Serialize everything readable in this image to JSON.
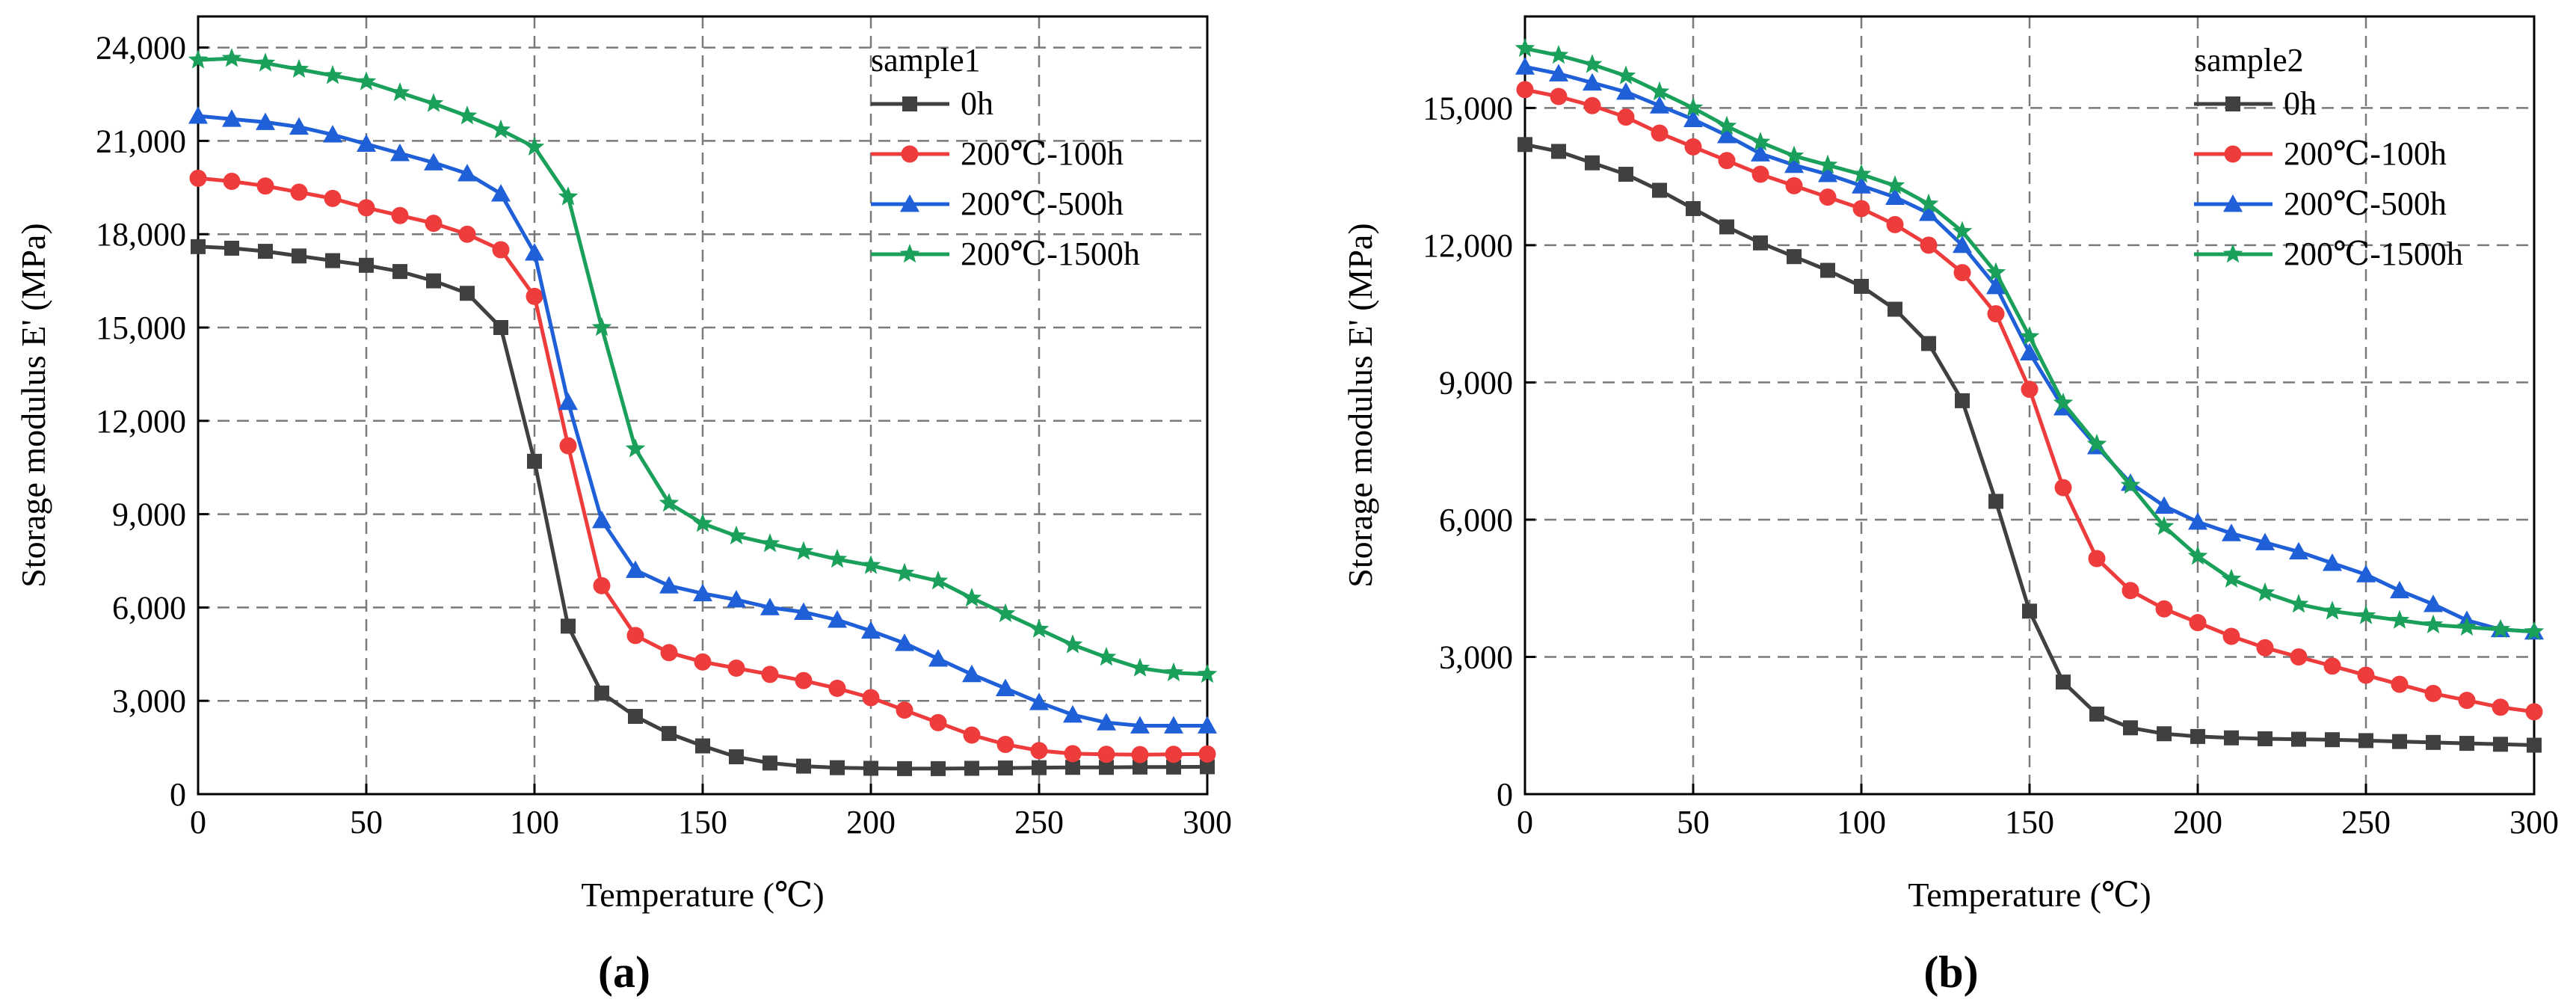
{
  "chart_data": [
    {
      "type": "line",
      "panel_label": "(a)",
      "xlabel": "Temperature (℃)",
      "ylabel": "Storage modulus E' (MPa)",
      "xlim": [
        0,
        300
      ],
      "ylim": [
        0,
        25000
      ],
      "xticks": [
        0,
        50,
        100,
        150,
        200,
        250,
        300
      ],
      "xtick_labels": [
        "0",
        "50",
        "100",
        "150",
        "200",
        "250",
        "300"
      ],
      "yticks": [
        0,
        3000,
        6000,
        9000,
        12000,
        15000,
        18000,
        21000,
        24000
      ],
      "ytick_labels": [
        "0",
        "3,000",
        "6,000",
        "9,000",
        "12,000",
        "15,000",
        "18,000",
        "21,000",
        "24,000"
      ],
      "grid": true,
      "legend_title": "sample1",
      "legend_position": "top-right",
      "x": [
        0,
        10,
        20,
        30,
        40,
        50,
        60,
        70,
        80,
        90,
        100,
        110,
        120,
        130,
        140,
        150,
        160,
        170,
        180,
        190,
        200,
        210,
        220,
        230,
        240,
        250,
        260,
        270,
        280,
        290,
        300
      ],
      "series": [
        {
          "name": "0h",
          "color": "#404040",
          "marker": "square",
          "values": [
            17600,
            17550,
            17450,
            17300,
            17150,
            17000,
            16800,
            16500,
            16100,
            15000,
            10700,
            5400,
            3250,
            2500,
            1950,
            1550,
            1200,
            1000,
            900,
            850,
            830,
            820,
            820,
            830,
            840,
            850,
            860,
            860,
            870,
            870,
            880
          ]
        },
        {
          "name": "200℃-100h",
          "color": "#ee3b3b",
          "marker": "circle",
          "values": [
            19800,
            19700,
            19550,
            19350,
            19150,
            18850,
            18600,
            18350,
            18000,
            17500,
            16000,
            11200,
            6700,
            5100,
            4550,
            4250,
            4050,
            3850,
            3650,
            3400,
            3100,
            2700,
            2300,
            1900,
            1600,
            1400,
            1300,
            1280,
            1270,
            1280,
            1290
          ]
        },
        {
          "name": "200℃-500h",
          "color": "#1f5fd8",
          "marker": "triangle",
          "values": [
            21800,
            21700,
            21600,
            21450,
            21200,
            20900,
            20600,
            20300,
            19950,
            19300,
            17400,
            12600,
            8800,
            7200,
            6700,
            6450,
            6250,
            6000,
            5850,
            5600,
            5250,
            4850,
            4350,
            3850,
            3400,
            2950,
            2550,
            2300,
            2200,
            2200,
            2200
          ]
        },
        {
          "name": "200℃-1500h",
          "color": "#1aa05a",
          "marker": "star",
          "values": [
            23600,
            23650,
            23500,
            23300,
            23100,
            22900,
            22550,
            22200,
            21800,
            21350,
            20800,
            19200,
            15000,
            11100,
            9350,
            8700,
            8300,
            8050,
            7800,
            7550,
            7350,
            7100,
            6850,
            6300,
            5800,
            5300,
            4800,
            4400,
            4050,
            3900,
            3850
          ]
        }
      ]
    },
    {
      "type": "line",
      "panel_label": "(b)",
      "xlabel": "Temperature (℃)",
      "ylabel": "Storage modulus E' (MPa)",
      "xlim": [
        0,
        300
      ],
      "ylim": [
        0,
        17000
      ],
      "xticks": [
        0,
        50,
        100,
        150,
        200,
        250,
        300
      ],
      "xtick_labels": [
        "0",
        "50",
        "100",
        "150",
        "200",
        "250",
        "300"
      ],
      "yticks": [
        0,
        3000,
        6000,
        9000,
        12000,
        15000
      ],
      "ytick_labels": [
        "0",
        "3,000",
        "6,000",
        "9,000",
        "12,000",
        "15,000"
      ],
      "grid": true,
      "legend_title": "sample2",
      "legend_position": "top-right",
      "x": [
        0,
        10,
        20,
        30,
        40,
        50,
        60,
        70,
        80,
        90,
        100,
        110,
        120,
        130,
        140,
        150,
        160,
        170,
        180,
        190,
        200,
        210,
        220,
        230,
        240,
        250,
        260,
        270,
        280,
        290,
        300
      ],
      "series": [
        {
          "name": "0h",
          "color": "#404040",
          "marker": "square",
          "values": [
            14200,
            14050,
            13800,
            13550,
            13200,
            12800,
            12400,
            12050,
            11750,
            11450,
            11100,
            10600,
            9850,
            8600,
            6400,
            4000,
            2450,
            1750,
            1450,
            1320,
            1260,
            1230,
            1210,
            1200,
            1190,
            1170,
            1150,
            1130,
            1110,
            1090,
            1070
          ]
        },
        {
          "name": "200℃-100h",
          "color": "#ee3b3b",
          "marker": "circle",
          "values": [
            15400,
            15250,
            15050,
            14800,
            14450,
            14150,
            13850,
            13550,
            13300,
            13050,
            12800,
            12450,
            12000,
            11400,
            10500,
            8850,
            6700,
            5150,
            4450,
            4050,
            3750,
            3450,
            3200,
            3000,
            2800,
            2600,
            2400,
            2200,
            2050,
            1900,
            1800
          ]
        },
        {
          "name": "200℃-500h",
          "color": "#1f5fd8",
          "marker": "triangle",
          "values": [
            15900,
            15750,
            15550,
            15350,
            15050,
            14750,
            14400,
            14000,
            13750,
            13550,
            13300,
            13050,
            12700,
            12000,
            11100,
            9650,
            8450,
            7600,
            6800,
            6300,
            5950,
            5700,
            5500,
            5300,
            5050,
            4800,
            4450,
            4150,
            3800,
            3600,
            3550
          ]
        },
        {
          "name": "200℃-1500h",
          "color": "#1aa05a",
          "marker": "star",
          "values": [
            16300,
            16150,
            15950,
            15700,
            15350,
            15000,
            14600,
            14250,
            13950,
            13750,
            13550,
            13300,
            12900,
            12300,
            11400,
            10000,
            8550,
            7650,
            6750,
            5850,
            5200,
            4700,
            4400,
            4150,
            4000,
            3900,
            3800,
            3700,
            3650,
            3600,
            3550
          ]
        }
      ]
    }
  ]
}
